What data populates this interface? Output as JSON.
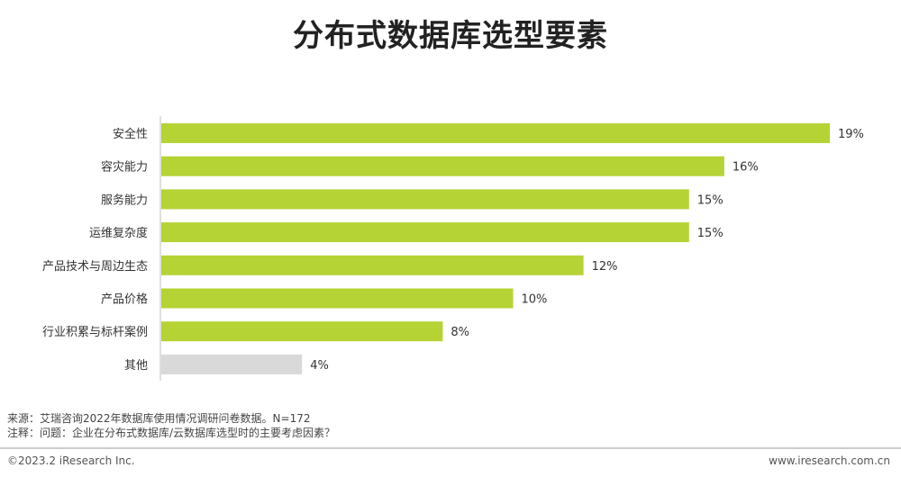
{
  "title": "分布式数据库选型要素",
  "chart_data": {
    "type": "bar",
    "orientation": "horizontal",
    "categories": [
      "安全性",
      "容灾能力",
      "服务能力",
      "运维复杂度",
      "产品技术与周边生态",
      "产品价格",
      "行业积累与标杆案例",
      "其他"
    ],
    "values": [
      19,
      16,
      15,
      15,
      12,
      10,
      8,
      4
    ],
    "value_labels": [
      "19%",
      "16%",
      "15%",
      "15%",
      "12%",
      "10%",
      "8%",
      "4%"
    ],
    "bar_colors": [
      "#b5d334",
      "#b5d334",
      "#b5d334",
      "#b5d334",
      "#b5d334",
      "#b5d334",
      "#b5d334",
      "#d9d9d9"
    ],
    "xlim": [
      0,
      19
    ],
    "grid": false,
    "legend": "none"
  },
  "notes": {
    "source": "来源：艾瑞咨询2022年数据库使用情况调研问卷数据。N=172",
    "remark": "注释：问题：企业在分布式数据库/云数据库选型时的主要考虑因素？"
  },
  "footer": {
    "copyright": "©2023.2 iResearch Inc.",
    "website": "www.iresearch.com.cn"
  }
}
